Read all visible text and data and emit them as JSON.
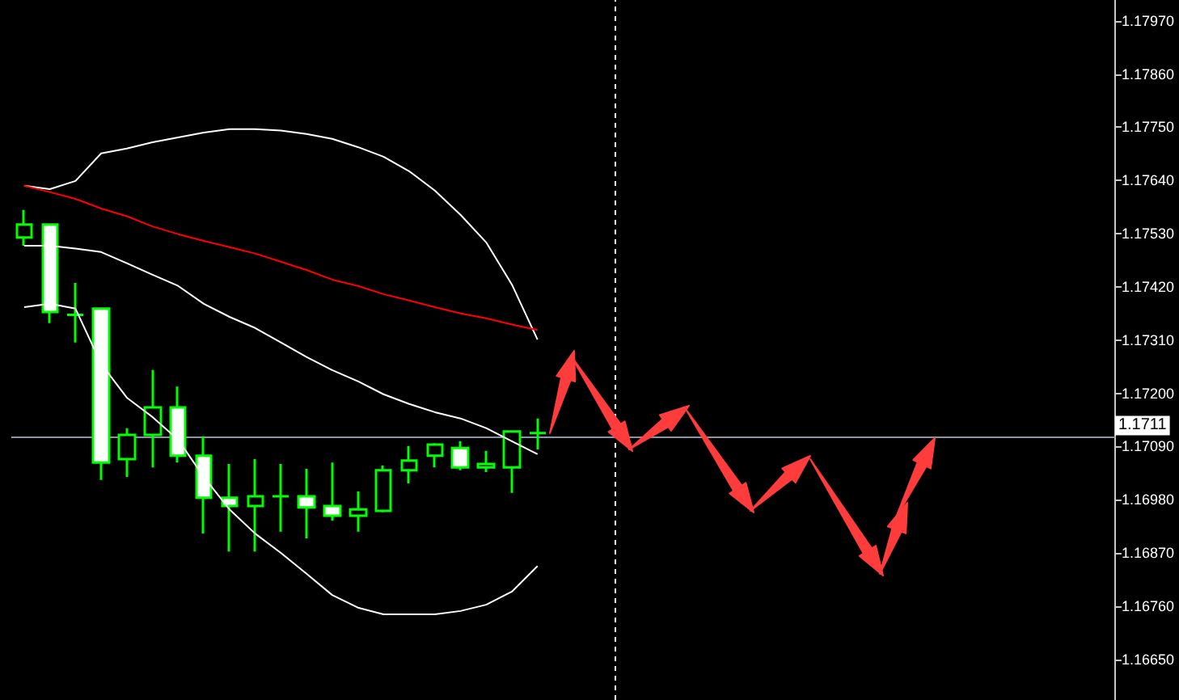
{
  "chart_data": {
    "type": "candlestick",
    "color": "#00ff00",
    "categories": [
      null,
      null,
      null,
      null,
      null,
      null,
      null,
      null,
      null,
      null,
      null,
      null,
      null,
      null,
      null,
      null,
      null,
      null,
      null,
      null,
      null,
      null,
      null,
      null,
      null,
      null,
      null,
      null,
      null,
      null,
      null,
      null,
      null,
      null,
      null,
      null,
      null,
      null,
      null,
      null,
      null,
      null,
      null
    ],
    "ohlc": [
      [
        1.17522,
        1.17579,
        1.17505,
        1.17549
      ],
      [
        1.17549,
        1.17549,
        1.17345,
        1.17368
      ],
      [
        1.17362,
        1.17428,
        1.17305,
        1.17362
      ],
      [
        1.17375,
        1.17375,
        1.17021,
        1.17057
      ],
      [
        1.17064,
        1.17128,
        1.17027,
        1.17114
      ],
      [
        1.17114,
        1.17248,
        1.17047,
        1.17171
      ],
      [
        1.17171,
        1.17214,
        1.17057,
        1.17071
      ],
      [
        1.17071,
        1.17111,
        1.1691,
        1.16984
      ],
      [
        1.16984,
        1.17054,
        1.16873,
        1.16967
      ],
      [
        1.16967,
        1.17064,
        1.16873,
        1.16987
      ],
      [
        1.16987,
        1.17054,
        1.16914,
        1.16987
      ],
      [
        1.16987,
        1.17044,
        1.169,
        1.16964
      ],
      [
        1.16967,
        1.17057,
        1.16937,
        1.16947
      ],
      [
        1.16947,
        1.16997,
        1.16914,
        1.1696
      ],
      [
        1.16957,
        1.17051,
        1.16954,
        1.17041
      ],
      [
        1.17041,
        1.17091,
        1.17014,
        1.17061
      ],
      [
        1.17071,
        1.17097,
        1.17047,
        1.17094
      ],
      [
        1.17087,
        1.17101,
        1.17041,
        1.17047
      ],
      [
        1.17047,
        1.17081,
        1.17037,
        1.17054
      ],
      [
        1.17047,
        1.17121,
        1.16994,
        1.17121
      ],
      [
        1.17118,
        1.17148,
        1.17084,
        1.17118
      ],
      null,
      null,
      null,
      null,
      null,
      null,
      null,
      null,
      null,
      null,
      null,
      null,
      null,
      null,
      null,
      null,
      null,
      null,
      null,
      null,
      null,
      null
    ],
    "series": [
      {
        "type": "line",
        "color": "#ffffff",
        "values": [
          1.17629,
          1.17622,
          1.17639,
          1.17696,
          1.17706,
          1.17719,
          1.17729,
          1.17739,
          1.17746,
          1.17746,
          1.17743,
          1.17736,
          1.17726,
          1.17709,
          1.17689,
          1.17659,
          1.17619,
          1.17569,
          1.17512,
          1.17425,
          1.17311,
          null,
          null,
          null,
          null,
          null,
          null,
          null,
          null,
          null,
          null,
          null,
          null,
          null,
          null,
          null,
          null,
          null,
          null,
          null,
          null,
          null,
          null
        ]
      },
      {
        "type": "line",
        "color": "#ffffff",
        "values": [
          1.17505,
          1.17505,
          1.17499,
          1.17492,
          1.17469,
          1.17445,
          1.17422,
          1.17385,
          1.17358,
          1.17335,
          1.17305,
          1.17275,
          1.17248,
          1.17225,
          1.17198,
          1.17178,
          1.17161,
          1.17148,
          1.17128,
          1.17101,
          1.17074,
          null,
          null,
          null,
          null,
          null,
          null,
          null,
          null,
          null,
          null,
          null,
          null,
          null,
          null,
          null,
          null,
          null,
          null,
          null,
          null,
          null,
          null
        ]
      },
      {
        "type": "line",
        "color": "#ffffff",
        "values": [
          1.17378,
          1.17385,
          1.17375,
          1.17261,
          1.17191,
          1.17151,
          1.17104,
          1.17027,
          1.1696,
          1.1691,
          1.1687,
          1.16827,
          1.16783,
          1.16757,
          1.16743,
          1.16743,
          1.16743,
          1.1675,
          1.16763,
          1.1679,
          1.16843,
          null,
          null,
          null,
          null,
          null,
          null,
          null,
          null,
          null,
          null,
          null,
          null,
          null,
          null,
          null,
          null,
          null,
          null,
          null,
          null,
          null,
          null
        ]
      },
      {
        "type": "line",
        "color": "#ff0000",
        "values": [
          1.17629,
          1.17616,
          1.17602,
          1.17582,
          1.17566,
          1.17545,
          1.17529,
          1.17515,
          1.17502,
          1.17489,
          1.17472,
          1.17455,
          1.17435,
          1.17422,
          1.17405,
          1.17392,
          1.17378,
          1.17365,
          1.17355,
          1.17342,
          1.17331,
          null,
          null,
          null,
          null,
          null,
          null,
          null,
          null,
          null,
          null,
          null,
          null,
          null,
          null,
          null,
          null,
          null,
          null,
          null,
          null,
          null,
          null
        ]
      }
    ],
    "ylim": [
      1.16566,
      1.18013
    ],
    "yticks": [
      {
        "value": 1.1665,
        "label": "1.16650"
      },
      {
        "value": 1.1676,
        "label": "1.16760"
      },
      {
        "value": 1.1687,
        "label": "1.16870"
      },
      {
        "value": 1.1698,
        "label": "1.16980"
      },
      {
        "value": 1.1709,
        "label": "1.17090"
      },
      {
        "value": 1.172,
        "label": "1.17200"
      },
      {
        "value": 1.1731,
        "label": "1.17310"
      },
      {
        "value": 1.1742,
        "label": "1.17420"
      },
      {
        "value": 1.1753,
        "label": "1.17530"
      },
      {
        "value": 1.1764,
        "label": "1.17640"
      },
      {
        "value": 1.1775,
        "label": "1.17750"
      },
      {
        "value": 1.1786,
        "label": "1.17860"
      },
      {
        "value": 1.1797,
        "label": "1.17970"
      }
    ],
    "tick_labels": "y",
    "grid": false,
    "ref_lines": [
      {
        "axis": "y",
        "value": 1.1711,
        "label": "1.1711",
        "color": "#8a96a8"
      }
    ]
  }
}
